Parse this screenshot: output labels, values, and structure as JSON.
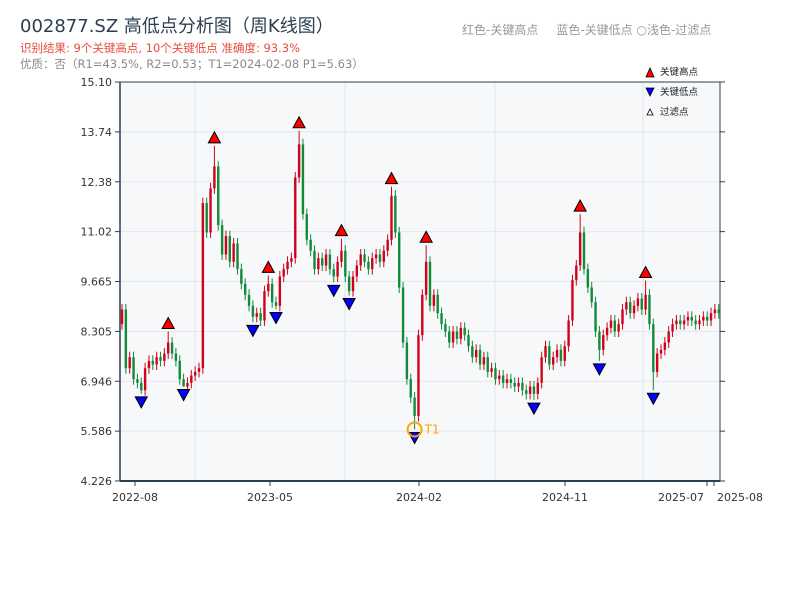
{
  "title": "002877.SZ 高低点分析图（周K线图）",
  "result_text": "识别结果: 9个关键高点, 10个关键低点  准确度: 93.3%",
  "quality_text": "优质：否（R1=43.5%, R2=0.53；T1=2024-02-08 P1=5.63）",
  "hint": {
    "red": "红色-关键高点",
    "blue": "蓝色-关键低点",
    "light": "○浅色-过滤点"
  },
  "colors": {
    "up": "#d0021b",
    "down": "#118a3a",
    "high_marker": "#ff0000",
    "low_marker": "#0000ff",
    "t1": "#ffa500",
    "plot_bg": "#f6f8fa"
  },
  "chart_data": {
    "type": "candlestick",
    "ylim": [
      4.226,
      15.1
    ],
    "yticks": [
      "15.10",
      "13.74",
      "12.38",
      "11.02",
      "9.665",
      "8.305",
      "6.946",
      "5.586",
      "4.226"
    ],
    "xticks": [
      "2022-08",
      "2023-05",
      "2024-02",
      "2024-11",
      "2025-07",
      "2025-08"
    ],
    "grid": true,
    "legend": {
      "placement": "top-right",
      "entries": [
        "关键高点",
        "关键低点",
        "过滤点"
      ]
    },
    "weekly_close": [
      8.9,
      7.3,
      7.6,
      7.0,
      6.9,
      6.7,
      7.3,
      7.5,
      7.4,
      7.6,
      7.5,
      7.7,
      8.0,
      7.7,
      7.5,
      7.0,
      6.8,
      6.9,
      7.1,
      7.2,
      7.3,
      11.8,
      11.0,
      12.2,
      12.8,
      11.2,
      10.4,
      10.9,
      10.2,
      10.7,
      10.0,
      9.6,
      9.3,
      9.0,
      8.7,
      8.8,
      8.6,
      9.4,
      9.6,
      9.1,
      9.0,
      9.8,
      10.0,
      10.2,
      10.3,
      12.5,
      13.4,
      11.5,
      10.8,
      10.5,
      10.0,
      10.3,
      10.1,
      10.4,
      10.0,
      9.8,
      10.2,
      10.5,
      9.8,
      9.4,
      9.8,
      10.1,
      10.4,
      10.2,
      10.0,
      10.3,
      10.4,
      10.2,
      10.5,
      10.8,
      12.0,
      11.0,
      9.5,
      8.0,
      7.0,
      6.5,
      6.0,
      8.2,
      9.3,
      10.2,
      9.0,
      9.3,
      8.8,
      8.5,
      8.3,
      8.0,
      8.3,
      8.1,
      8.4,
      8.2,
      7.9,
      7.6,
      7.8,
      7.4,
      7.6,
      7.2,
      7.3,
      7.0,
      7.1,
      6.9,
      7.0,
      6.9,
      6.8,
      6.9,
      6.7,
      6.6,
      6.8,
      6.6,
      6.9,
      7.6,
      7.9,
      7.4,
      7.6,
      7.8,
      7.5,
      7.9,
      8.6,
      9.7,
      10.1,
      11.0,
      10.0,
      9.5,
      9.1,
      8.3,
      7.8,
      8.2,
      8.4,
      8.6,
      8.3,
      8.5,
      8.9,
      9.1,
      8.8,
      9.0,
      9.2,
      8.9,
      9.3,
      8.5,
      7.2,
      7.7,
      7.8,
      8.0,
      8.3,
      8.5,
      8.6,
      8.5,
      8.6,
      8.7,
      8.6,
      8.5,
      8.6,
      8.7,
      8.6,
      8.8,
      8.9,
      8.8
    ],
    "key_highs": [
      {
        "week": 12,
        "price": 8.3
      },
      {
        "week": 24,
        "price": 13.36
      },
      {
        "week": 38,
        "price": 9.83
      },
      {
        "week": 46,
        "price": 13.77
      },
      {
        "week": 57,
        "price": 10.83
      },
      {
        "week": 70,
        "price": 12.25
      },
      {
        "week": 79,
        "price": 10.65
      },
      {
        "week": 119,
        "price": 11.5
      },
      {
        "week": 136,
        "price": 9.69
      }
    ],
    "key_lows": [
      {
        "week": 5,
        "price": 6.6
      },
      {
        "week": 16,
        "price": 6.8
      },
      {
        "week": 34,
        "price": 8.55
      },
      {
        "week": 40,
        "price": 8.9
      },
      {
        "week": 55,
        "price": 9.64
      },
      {
        "week": 59,
        "price": 9.28
      },
      {
        "week": 76,
        "price": 5.63
      },
      {
        "week": 107,
        "price": 6.43
      },
      {
        "week": 124,
        "price": 7.5
      },
      {
        "week": 138,
        "price": 6.7
      }
    ],
    "t1": {
      "label": "T1",
      "date": "2024-02-08",
      "price": 5.63,
      "week": 76
    }
  }
}
